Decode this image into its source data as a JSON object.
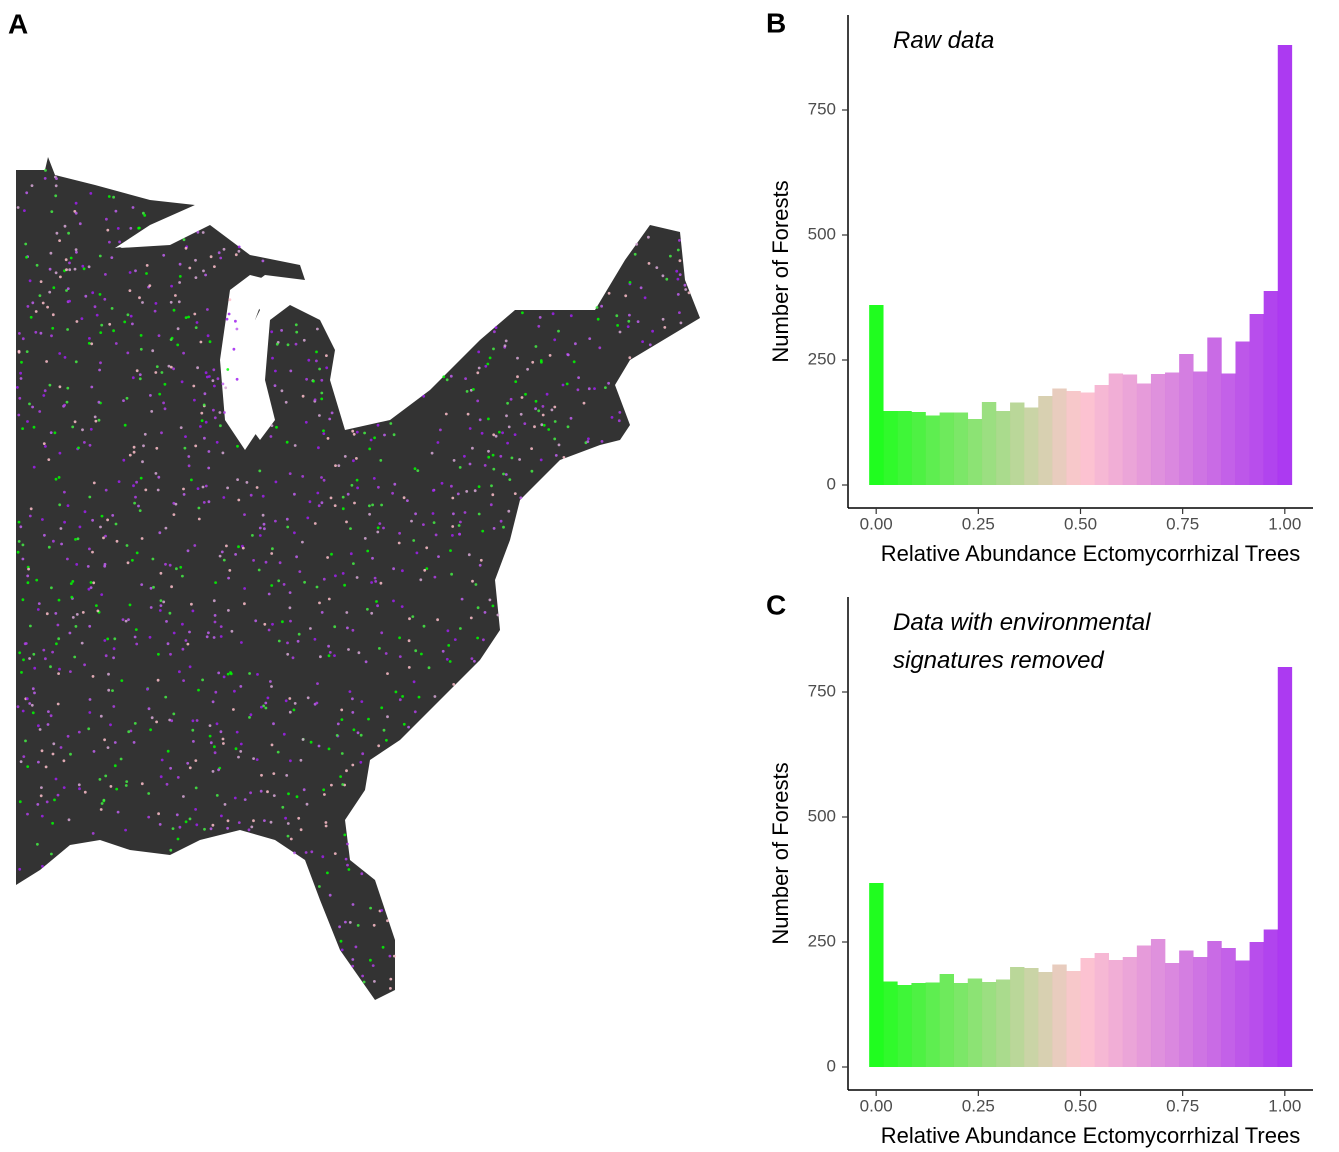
{
  "map": {
    "panel": "A"
  },
  "chart_data": [
    {
      "type": "histogram",
      "panel": "B",
      "annotation": [
        "Raw data"
      ],
      "xlabel": "Relative Abundance Ectomycorrhizal Trees",
      "ylabel": "Number of Forests",
      "bins": [
        -0.0172,
        0.0172,
        0.0517,
        0.0862,
        0.1207,
        0.1552,
        0.1897,
        0.2241,
        0.2586,
        0.2931,
        0.3276,
        0.3621,
        0.3966,
        0.431,
        0.4655,
        0.5,
        0.5345,
        0.569,
        0.6034,
        0.6379,
        0.6724,
        0.7069,
        0.7414,
        0.7759,
        0.8103,
        0.8448,
        0.8793,
        0.9138,
        0.9483,
        0.9828,
        1.0172
      ],
      "values": [
        360,
        148,
        148,
        146,
        139,
        145,
        145,
        132,
        166,
        148,
        165,
        155,
        178,
        193,
        188,
        185,
        200,
        223,
        221,
        203,
        222,
        225,
        262,
        227,
        295,
        223,
        287,
        342,
        388,
        880
      ],
      "fill_gradient": [
        "#00ff00",
        "#ffc0cb",
        "#a020f0"
      ],
      "xlim": [
        -0.069,
        1.069
      ],
      "ylim": [
        -46,
        940
      ],
      "xticks": [
        {
          "value": 0,
          "label": "0.00"
        },
        {
          "value": 0.25,
          "label": "0.25"
        },
        {
          "value": 0.5,
          "label": "0.50"
        },
        {
          "value": 0.75,
          "label": "0.75"
        },
        {
          "value": 1,
          "label": "1.00"
        }
      ],
      "yticks": [
        0,
        250,
        500,
        750
      ],
      "grid": false
    },
    {
      "type": "histogram",
      "panel": "C",
      "annotation": [
        "Data with environmental",
        "signatures removed"
      ],
      "xlabel": "Relative Abundance Ectomycorrhizal Trees",
      "ylabel": "Number of Forests",
      "bins": [
        -0.0172,
        0.0172,
        0.0517,
        0.0862,
        0.1207,
        0.1552,
        0.1897,
        0.2241,
        0.2586,
        0.2931,
        0.3276,
        0.3621,
        0.3966,
        0.431,
        0.4655,
        0.5,
        0.5345,
        0.569,
        0.6034,
        0.6379,
        0.6724,
        0.7069,
        0.7414,
        0.7759,
        0.8103,
        0.8448,
        0.8793,
        0.9138,
        0.9483,
        0.9828,
        1.0172
      ],
      "values": [
        368,
        171,
        164,
        168,
        169,
        186,
        168,
        177,
        170,
        175,
        200,
        198,
        190,
        205,
        192,
        218,
        228,
        214,
        220,
        243,
        256,
        208,
        233,
        220,
        252,
        238,
        213,
        250,
        275,
        800
      ],
      "fill_gradient": [
        "#00ff00",
        "#ffc0cb",
        "#a020f0"
      ],
      "xlim": [
        -0.069,
        1.069
      ],
      "ylim": [
        -46,
        940
      ],
      "xticks": [
        {
          "value": 0,
          "label": "0.00"
        },
        {
          "value": 0.25,
          "label": "0.25"
        },
        {
          "value": 0.5,
          "label": "0.50"
        },
        {
          "value": 0.75,
          "label": "0.75"
        },
        {
          "value": 1,
          "label": "1.00"
        }
      ],
      "yticks": [
        0,
        250,
        500,
        750
      ],
      "grid": false
    }
  ]
}
